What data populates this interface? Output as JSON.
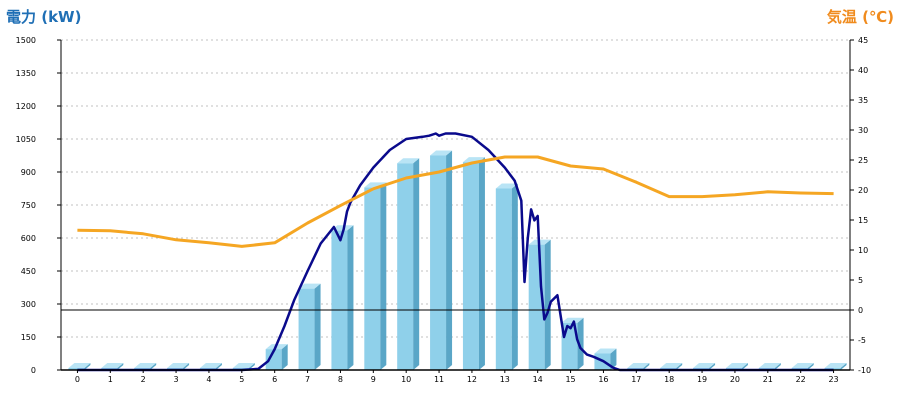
{
  "chart_data": {
    "type": "bar+line",
    "title_left": "電力 (kW)",
    "title_right": "気温 (℃)",
    "categories": [
      "0",
      "1",
      "2",
      "3",
      "4",
      "5",
      "6",
      "7",
      "8",
      "9",
      "10",
      "11",
      "12",
      "13",
      "14",
      "15",
      "16",
      "17",
      "18",
      "19",
      "20",
      "21",
      "22",
      "23"
    ],
    "y_left": {
      "min": 0,
      "max": 1500,
      "ticks": [
        "0",
        "150",
        "300",
        "450",
        "600",
        "750",
        "900",
        "1050",
        "1200",
        "1350",
        "1500"
      ]
    },
    "y_right": {
      "min": -10,
      "max": 45,
      "ticks": [
        "-10",
        "-5",
        "0",
        "5",
        "10",
        "15",
        "20",
        "25",
        "30",
        "35",
        "40",
        "45"
      ]
    },
    "grid": true,
    "bars": {
      "name": "",
      "axis": "left",
      "values": [
        0,
        0,
        0,
        0,
        0,
        0,
        95,
        370,
        635,
        830,
        940,
        975,
        945,
        825,
        570,
        215,
        75,
        0,
        0,
        0,
        0,
        0,
        0,
        0
      ]
    },
    "power_curve": {
      "name": "",
      "axis": "left",
      "x": [
        0,
        5,
        5.5,
        5.8,
        6,
        6.3,
        6.6,
        7,
        7.4,
        7.8,
        8,
        8.1,
        8.2,
        8.3,
        8.6,
        9,
        9.5,
        10,
        10.5,
        10.7,
        10.9,
        11,
        11.2,
        11.5,
        12,
        12.5,
        13,
        13.3,
        13.5,
        13.6,
        13.7,
        13.8,
        13.9,
        14,
        14.1,
        14.2,
        14.3,
        14.4,
        14.6,
        14.8,
        14.9,
        15,
        15.1,
        15.2,
        15.3,
        15.5,
        15.7,
        16,
        16.3,
        16.5,
        17,
        23
      ],
      "y": [
        0,
        0,
        5,
        40,
        95,
        200,
        320,
        450,
        575,
        650,
        590,
        640,
        720,
        760,
        840,
        920,
        1000,
        1050,
        1060,
        1065,
        1075,
        1065,
        1075,
        1075,
        1060,
        1000,
        920,
        860,
        770,
        400,
        600,
        730,
        680,
        700,
        380,
        230,
        260,
        310,
        340,
        150,
        200,
        190,
        220,
        140,
        100,
        70,
        60,
        40,
        10,
        0,
        0,
        0
      ]
    },
    "temperature": {
      "name": "",
      "axis": "right",
      "x": [
        0,
        1,
        2,
        3,
        4,
        5,
        6,
        7,
        8,
        9,
        10,
        11,
        12,
        13,
        14,
        15,
        16,
        17,
        18,
        19,
        20,
        21,
        22,
        23
      ],
      "y": [
        13.3,
        13.2,
        12.7,
        11.7,
        11.2,
        10.6,
        11.2,
        14.5,
        17.4,
        20.2,
        22.0,
        23.0,
        24.5,
        25.5,
        25.5,
        24.0,
        23.5,
        21.3,
        18.9,
        18.9,
        19.2,
        19.7,
        19.5,
        19.4
      ]
    },
    "colors": {
      "bar_front": "#8fd0ea",
      "bar_side": "#5aa6c7",
      "bar_top": "#b9e4f5",
      "power_line": "#0a0a8c",
      "temperature_line": "#f5a623",
      "left_title": "#1f6fb5",
      "right_title": "#f08b1d",
      "grid": "#c0c0c0",
      "zero_line": "#000000"
    }
  }
}
